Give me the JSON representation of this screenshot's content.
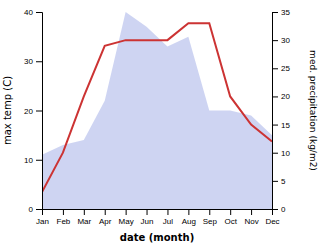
{
  "chart_data": {
    "type": "area",
    "xlabel": "date (month)",
    "ylabel": "max temp (C)",
    "y2label": "med. precipitation (kg/m2)",
    "categories": [
      "Jan",
      "Feb",
      "Mar",
      "Apr",
      "May",
      "Jun",
      "Jul",
      "Aug",
      "Sep",
      "Oct",
      "Nov",
      "Dec"
    ],
    "series": [
      {
        "type": "area",
        "color": "#c5cdf0",
        "values": [
          11,
          13,
          14,
          22,
          40,
          37,
          33,
          35,
          20,
          20,
          19,
          15
        ]
      },
      {
        "type": "line",
        "color": "#cc3333",
        "axis": "y2",
        "values": [
          3,
          10,
          20,
          29,
          30,
          30,
          30,
          33,
          33,
          20,
          15,
          12
        ]
      }
    ],
    "ylim": [
      0,
      40
    ],
    "yticks": [
      0,
      10,
      20,
      30,
      40
    ],
    "y2lim": [
      0,
      35
    ],
    "y2ticks": [
      0,
      5,
      10,
      15,
      20,
      25,
      30,
      35
    ],
    "grid": false
  }
}
